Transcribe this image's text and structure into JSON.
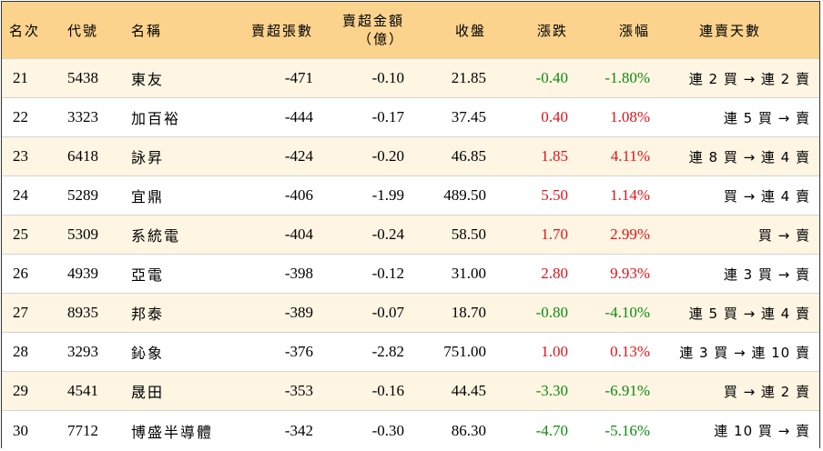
{
  "headers": {
    "rank": "名次",
    "code": "代號",
    "name": "名稱",
    "sell_shares": "賣超張數",
    "sell_amount_line1": "賣超金額",
    "sell_amount_line2": "（億）",
    "close": "收盤",
    "change": "漲跌",
    "pct": "漲幅",
    "streak": "連賣天數"
  },
  "colors": {
    "header_bg": "#fbd38d",
    "odd_row_bg": "#fef5e2",
    "up": "#e0141e",
    "down": "#118a11"
  },
  "rows": [
    {
      "rank": "21",
      "code": "5438",
      "name": "東友",
      "sell_shares": "-471",
      "sell_amount": "-0.10",
      "close": "21.85",
      "change": "-0.40",
      "pct": "-1.80%",
      "streak": "連 2 買 → 連 2 賣",
      "dir": "down"
    },
    {
      "rank": "22",
      "code": "3323",
      "name": "加百裕",
      "sell_shares": "-444",
      "sell_amount": "-0.17",
      "close": "37.45",
      "change": "0.40",
      "pct": "1.08%",
      "streak": "連 5 買 → 賣",
      "dir": "up"
    },
    {
      "rank": "23",
      "code": "6418",
      "name": "詠昇",
      "sell_shares": "-424",
      "sell_amount": "-0.20",
      "close": "46.85",
      "change": "1.85",
      "pct": "4.11%",
      "streak": "連 8 買 → 連 4 賣",
      "dir": "up"
    },
    {
      "rank": "24",
      "code": "5289",
      "name": "宜鼎",
      "sell_shares": "-406",
      "sell_amount": "-1.99",
      "close": "489.50",
      "change": "5.50",
      "pct": "1.14%",
      "streak": "買 → 連 4 賣",
      "dir": "up"
    },
    {
      "rank": "25",
      "code": "5309",
      "name": "系統電",
      "sell_shares": "-404",
      "sell_amount": "-0.24",
      "close": "58.50",
      "change": "1.70",
      "pct": "2.99%",
      "streak": "買 → 賣",
      "dir": "up"
    },
    {
      "rank": "26",
      "code": "4939",
      "name": "亞電",
      "sell_shares": "-398",
      "sell_amount": "-0.12",
      "close": "31.00",
      "change": "2.80",
      "pct": "9.93%",
      "streak": "連 3 買 → 賣",
      "dir": "up"
    },
    {
      "rank": "27",
      "code": "8935",
      "name": "邦泰",
      "sell_shares": "-389",
      "sell_amount": "-0.07",
      "close": "18.70",
      "change": "-0.80",
      "pct": "-4.10%",
      "streak": "連 5 買 → 連 4 賣",
      "dir": "down"
    },
    {
      "rank": "28",
      "code": "3293",
      "name": "鈊象",
      "sell_shares": "-376",
      "sell_amount": "-2.82",
      "close": "751.00",
      "change": "1.00",
      "pct": "0.13%",
      "streak": "連 3 買 → 連 10 賣",
      "dir": "up"
    },
    {
      "rank": "29",
      "code": "4541",
      "name": "晟田",
      "sell_shares": "-353",
      "sell_amount": "-0.16",
      "close": "44.45",
      "change": "-3.30",
      "pct": "-6.91%",
      "streak": "買 → 連 2 賣",
      "dir": "down"
    },
    {
      "rank": "30",
      "code": "7712",
      "name": "博盛半導體",
      "sell_shares": "-342",
      "sell_amount": "-0.30",
      "close": "86.30",
      "change": "-4.70",
      "pct": "-5.16%",
      "streak": "連 10 買 → 賣",
      "dir": "down"
    }
  ]
}
